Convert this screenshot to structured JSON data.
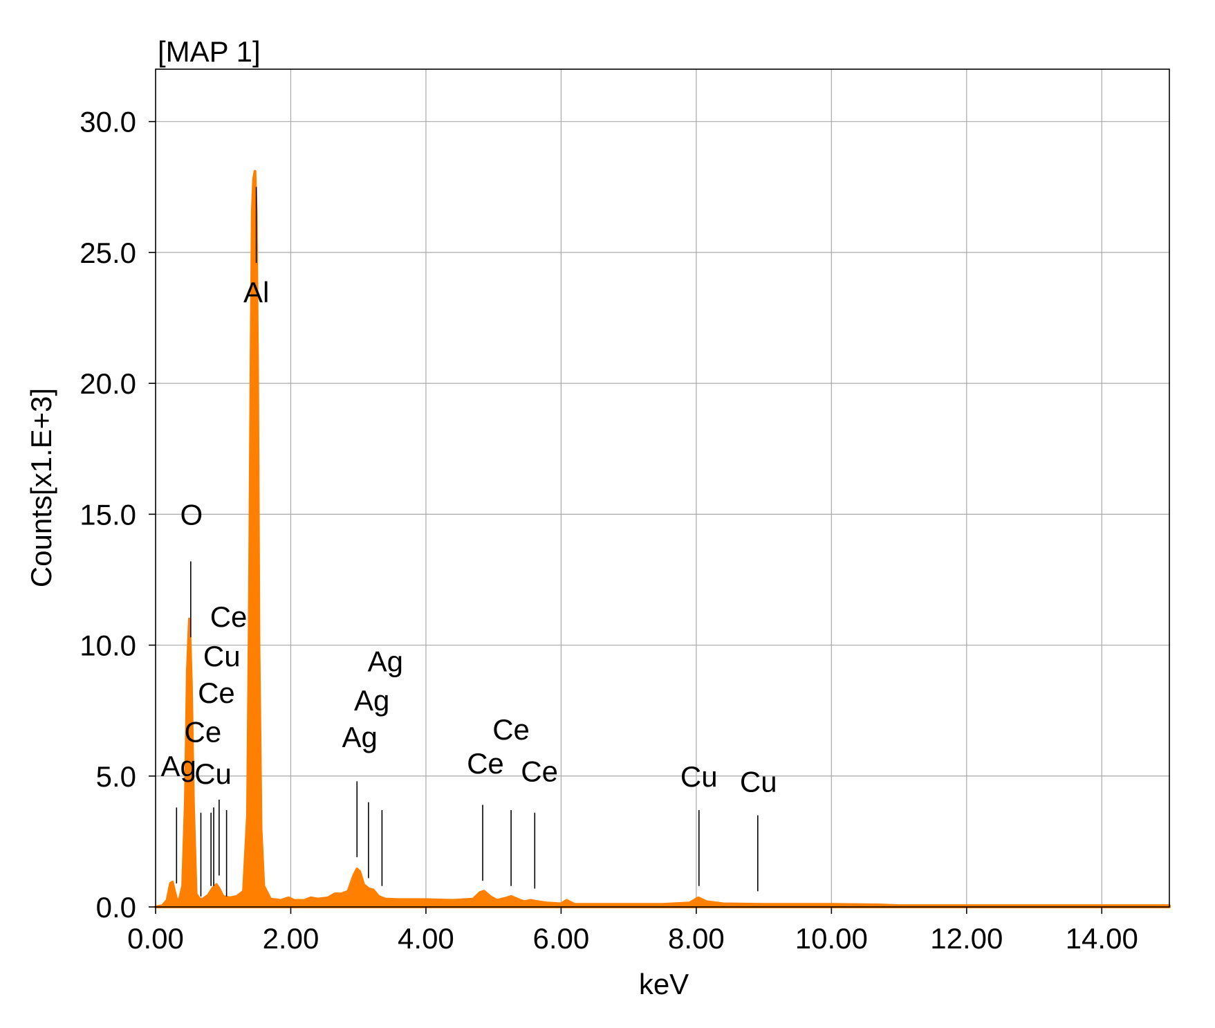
{
  "chart_data": {
    "type": "area",
    "title": "[MAP 1]",
    "xlabel": "keV",
    "ylabel": "Counts[x1.E+3]",
    "xlim": [
      0,
      15
    ],
    "ylim": [
      0,
      32
    ],
    "grid": true,
    "x_ticks": [
      0,
      2,
      4,
      6,
      8,
      10,
      12,
      14
    ],
    "x_tick_labels": [
      "0.00",
      "2.00",
      "4.00",
      "6.00",
      "8.00",
      "10.00",
      "12.00",
      "14.00"
    ],
    "y_ticks": [
      0,
      5,
      10,
      15,
      20,
      25,
      30
    ],
    "y_tick_labels": [
      "0.0",
      "5.0",
      "10.0",
      "15.0",
      "20.0",
      "25.0",
      "30.0"
    ],
    "series_color": "#ff8000",
    "series": [
      {
        "x": [
          0.0,
          0.1,
          0.17,
          0.22,
          0.25,
          0.28,
          0.31,
          0.35,
          0.4,
          0.44,
          0.47,
          0.5,
          0.53,
          0.56,
          0.6,
          0.65,
          0.7,
          0.78,
          0.84,
          0.9,
          0.94,
          1.0,
          1.1,
          1.2,
          1.3,
          1.36,
          1.39,
          1.41,
          1.43,
          1.45,
          1.47,
          1.49,
          1.51,
          1.53,
          1.56,
          1.6,
          1.7,
          1.85,
          1.97,
          2.05,
          2.2,
          2.3,
          2.4,
          2.55,
          2.65,
          2.75,
          2.85,
          2.93,
          2.98,
          3.02,
          3.08,
          3.15,
          3.22,
          3.3,
          3.4,
          3.6,
          4.0,
          4.4,
          4.7,
          4.8,
          4.86,
          4.95,
          5.05,
          5.2,
          5.26,
          5.35,
          5.45,
          5.55,
          5.65,
          5.8,
          6.0,
          6.08,
          6.2,
          7.5,
          7.9,
          8.03,
          8.15,
          8.4,
          9.0,
          9.5,
          10.0,
          10.7,
          11.0,
          15.0
        ],
        "y": [
          0.0,
          0.05,
          0.25,
          0.9,
          0.95,
          0.6,
          0.3,
          0.25,
          0.8,
          4.0,
          9.0,
          11.0,
          8.5,
          4.0,
          0.5,
          0.3,
          0.3,
          0.45,
          0.7,
          0.85,
          0.7,
          0.4,
          0.35,
          0.4,
          0.6,
          3.5,
          12.0,
          20.0,
          26.5,
          27.8,
          28.1,
          26.5,
          20.0,
          10.0,
          3.0,
          0.8,
          0.3,
          0.25,
          0.35,
          0.25,
          0.25,
          0.35,
          0.3,
          0.35,
          0.5,
          0.5,
          0.6,
          1.2,
          1.45,
          1.35,
          0.85,
          0.7,
          0.65,
          0.4,
          0.3,
          0.28,
          0.28,
          0.25,
          0.3,
          0.55,
          0.6,
          0.4,
          0.25,
          0.35,
          0.4,
          0.3,
          0.2,
          0.25,
          0.2,
          0.15,
          0.12,
          0.25,
          0.1,
          0.1,
          0.15,
          0.35,
          0.2,
          0.12,
          0.1,
          0.1,
          0.1,
          0.08,
          0.05,
          0.05
        ]
      }
    ],
    "peak_markers": [
      {
        "element": "Ag",
        "x": 0.31,
        "line_top": 3.8,
        "line_bottom": 0.9,
        "label_x": 0.34,
        "label_y": 5.0
      },
      {
        "element": "O",
        "x": 0.52,
        "line_top": 13.2,
        "line_bottom": 10.3,
        "label_x": 0.53,
        "label_y": 14.6
      },
      {
        "element": "Ce",
        "x": 0.67,
        "line_top": 3.6,
        "line_bottom": 0.4,
        "label_x": 0.7,
        "label_y": 6.3
      },
      {
        "element": "Cu",
        "x": 0.82,
        "line_top": 3.6,
        "line_bottom": 0.8,
        "label_x": 0.85,
        "label_y": 4.7
      },
      {
        "element": "Ce",
        "x": 0.86,
        "line_top": 3.8,
        "line_bottom": 0.8,
        "label_x": 0.9,
        "label_y": 7.8
      },
      {
        "element": "Cu",
        "x": 0.94,
        "line_top": 4.1,
        "line_bottom": 1.2,
        "label_x": 0.98,
        "label_y": 9.2
      },
      {
        "element": "Ce",
        "x": 1.05,
        "line_top": 3.7,
        "line_bottom": 0.4,
        "label_x": 1.08,
        "label_y": 10.7
      },
      {
        "element": "Al",
        "x": 1.49,
        "line_top": 27.5,
        "line_bottom": 24.6,
        "label_x": 1.49,
        "label_y": 23.1
      },
      {
        "element": "Ag",
        "x": 2.98,
        "line_top": 4.8,
        "line_bottom": 1.9,
        "label_x": 3.02,
        "label_y": 6.1
      },
      {
        "element": "Ag",
        "x": 3.15,
        "line_top": 4.0,
        "line_bottom": 1.1,
        "label_x": 3.2,
        "label_y": 7.5
      },
      {
        "element": "Ag",
        "x": 3.35,
        "line_top": 3.7,
        "line_bottom": 0.8,
        "label_x": 3.4,
        "label_y": 9.0
      },
      {
        "element": "Ce",
        "x": 4.84,
        "line_top": 3.9,
        "line_bottom": 1.0,
        "label_x": 4.88,
        "label_y": 5.1
      },
      {
        "element": "Ce",
        "x": 5.26,
        "line_top": 3.7,
        "line_bottom": 0.8,
        "label_x": 5.26,
        "label_y": 6.4
      },
      {
        "element": "Ce",
        "x": 5.61,
        "line_top": 3.6,
        "line_bottom": 0.7,
        "label_x": 5.68,
        "label_y": 4.8
      },
      {
        "element": "Cu",
        "x": 8.04,
        "line_top": 3.7,
        "line_bottom": 0.8,
        "label_x": 8.04,
        "label_y": 4.6
      },
      {
        "element": "Cu",
        "x": 8.91,
        "line_top": 3.5,
        "line_bottom": 0.6,
        "label_x": 8.92,
        "label_y": 4.4
      }
    ]
  }
}
